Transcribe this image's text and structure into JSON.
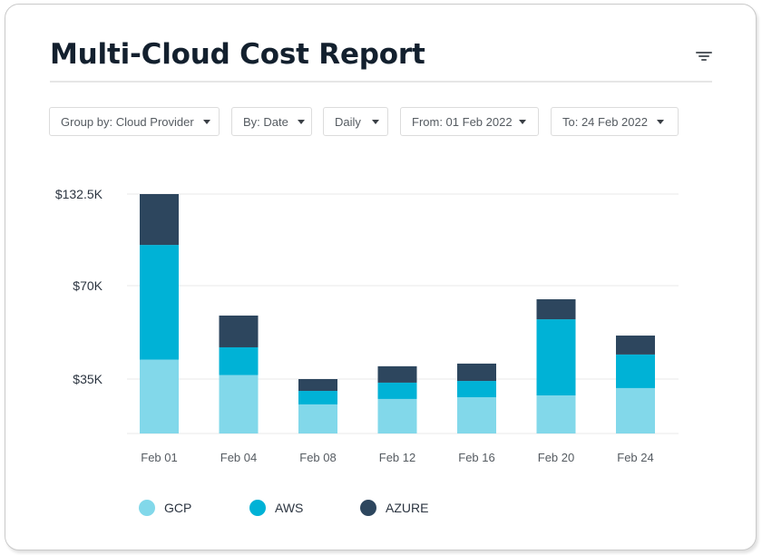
{
  "header": {
    "title": "Multi-Cloud Cost Report",
    "filter_icon": "filter-icon"
  },
  "controls": [
    {
      "name": "group-by-dropdown",
      "label": "Group by: Cloud Provider"
    },
    {
      "name": "by-date-dropdown",
      "label": "By: Date"
    },
    {
      "name": "granularity-dropdown",
      "label": "Daily"
    },
    {
      "name": "from-date-dropdown",
      "label": "From: 01 Feb 2022"
    },
    {
      "name": "to-date-dropdown",
      "label": "To: 24 Feb 2022"
    }
  ],
  "colors": {
    "GCP": "#82d8ea",
    "AWS": "#00b2d6",
    "AZURE": "#2d465e"
  },
  "chart_data": {
    "type": "bar",
    "stacked": true,
    "title": "Multi-Cloud Cost Report",
    "xlabel": "",
    "ylabel": "",
    "categories": [
      "Feb 01",
      "Feb 04",
      "Feb 08",
      "Feb 12",
      "Feb 16",
      "Feb 20",
      "Feb 24"
    ],
    "series": [
      {
        "name": "GCP",
        "values": [
          42.3,
          36.5,
          18.7,
          22.2,
          23.3,
          24.5,
          29.2
        ]
      },
      {
        "name": "AWS",
        "values": [
          55.5,
          10.4,
          8.7,
          10.5,
          10.5,
          32.9,
          15.0
        ]
      },
      {
        "name": "AZURE",
        "values": [
          34.7,
          11.9,
          7.6,
          7.1,
          7.0,
          7.5,
          7.1
        ]
      }
    ],
    "units": "thousands USD",
    "y_ticks": [
      {
        "value": 35,
        "label": "$35K"
      },
      {
        "value": 70,
        "label": "$70K"
      },
      {
        "value": 132.5,
        "label": "$132.5K"
      }
    ],
    "ylim": [
      0,
      132.5
    ],
    "grid": true,
    "legend": {
      "position": "bottom-left",
      "entries": [
        "GCP",
        "AWS",
        "AZURE"
      ]
    }
  }
}
